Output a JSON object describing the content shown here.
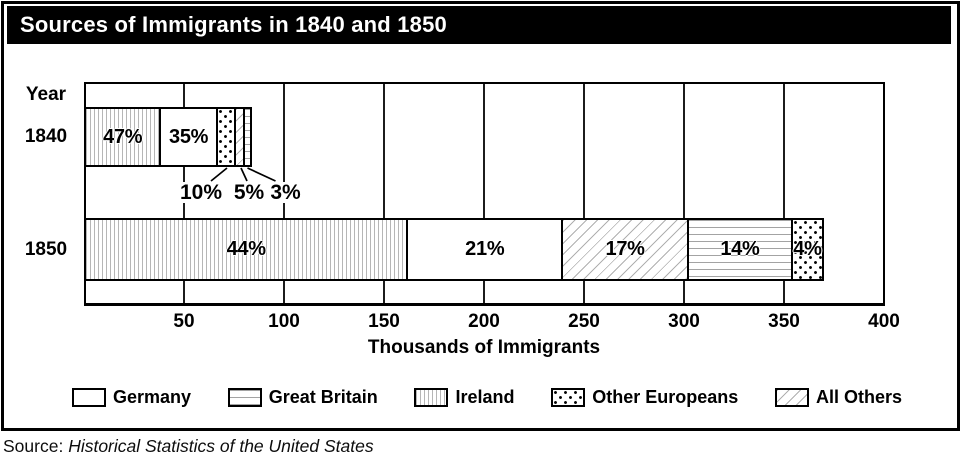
{
  "header": {
    "title": "Sources of Immigrants in 1840 and 1850"
  },
  "source": {
    "prefix": "Source:",
    "title": "Historical Statistics of the United States"
  },
  "colors": {
    "title_bg": "#000000",
    "title_fg": "#ffffff",
    "line": "#000000",
    "hatch_gray": "#b0b0b0"
  },
  "chart_data": {
    "type": "bar",
    "stacked": true,
    "orientation": "horizontal",
    "title": "Sources of Immigrants in 1840 and 1850",
    "xlabel": "Thousands of Immigrants",
    "ylabel": "Year",
    "xlim": [
      0,
      400
    ],
    "x_ticks": [
      50,
      100,
      150,
      200,
      250,
      300,
      350,
      400
    ],
    "grid": "vertical",
    "legend_position": "bottom",
    "legend": [
      {
        "label": "Germany",
        "pattern": "plain"
      },
      {
        "label": "Great Britain",
        "pattern": "hlines"
      },
      {
        "label": "Ireland",
        "pattern": "vlines"
      },
      {
        "label": "Other Europeans",
        "pattern": "dots"
      },
      {
        "label": "All Others",
        "pattern": "diag"
      }
    ],
    "bars": [
      {
        "year": "1840",
        "total_thousands": 84,
        "segments": [
          {
            "group": "Ireland",
            "percent": 47,
            "pattern": "vlines",
            "label": "47%",
            "label_style": "inside"
          },
          {
            "group": "Germany",
            "percent": 35,
            "pattern": "plain",
            "label": "35%",
            "label_style": "inside"
          },
          {
            "group": "Other Europeans",
            "percent": 10,
            "pattern": "dots",
            "label": "10%",
            "label_style": "callout"
          },
          {
            "group": "All Others",
            "percent": 5,
            "pattern": "diag",
            "label": "5%",
            "label_style": "callout"
          },
          {
            "group": "Great Britain",
            "percent": 3,
            "pattern": "hlines",
            "label": "3%",
            "label_style": "callout"
          }
        ]
      },
      {
        "year": "1850",
        "total_thousands": 370,
        "segments": [
          {
            "group": "Ireland",
            "percent": 44,
            "pattern": "vlines",
            "label": "44%",
            "label_style": "inside"
          },
          {
            "group": "Germany",
            "percent": 21,
            "pattern": "plain",
            "label": "21%",
            "label_style": "inside"
          },
          {
            "group": "All Others",
            "percent": 17,
            "pattern": "diag",
            "label": "17%",
            "label_style": "inside"
          },
          {
            "group": "Great Britain",
            "percent": 14,
            "pattern": "hlines",
            "label": "14%",
            "label_style": "inside"
          },
          {
            "group": "Other Europeans",
            "percent": 4,
            "pattern": "dots",
            "label": "4%",
            "label_style": "inside"
          }
        ]
      }
    ]
  }
}
